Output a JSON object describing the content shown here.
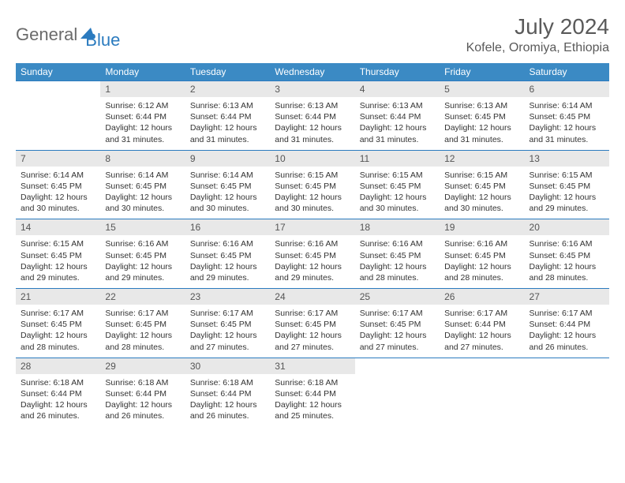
{
  "brand": {
    "part1": "General",
    "part2": "Blue"
  },
  "title": "July 2024",
  "location": "Kofele, Oromiya, Ethiopia",
  "colors": {
    "header_bg": "#3b8ac4",
    "row_border": "#2b7bbf",
    "daynum_bg": "#e8e8e8",
    "text": "#333333",
    "title_text": "#5a5a5a",
    "brand_gray": "#6a6a6a",
    "brand_blue": "#2b7bbf",
    "page_bg": "#ffffff"
  },
  "typography": {
    "month_title_pt": 28,
    "location_pt": 16,
    "weekday_header_pt": 12,
    "daynum_pt": 12,
    "cell_body_pt": 10.5,
    "logo_pt": 22
  },
  "weekdays": [
    "Sunday",
    "Monday",
    "Tuesday",
    "Wednesday",
    "Thursday",
    "Friday",
    "Saturday"
  ],
  "weeks": [
    [
      null,
      {
        "n": "1",
        "sunrise": "Sunrise: 6:12 AM",
        "sunset": "Sunset: 6:44 PM",
        "daylight": "Daylight: 12 hours and 31 minutes."
      },
      {
        "n": "2",
        "sunrise": "Sunrise: 6:13 AM",
        "sunset": "Sunset: 6:44 PM",
        "daylight": "Daylight: 12 hours and 31 minutes."
      },
      {
        "n": "3",
        "sunrise": "Sunrise: 6:13 AM",
        "sunset": "Sunset: 6:44 PM",
        "daylight": "Daylight: 12 hours and 31 minutes."
      },
      {
        "n": "4",
        "sunrise": "Sunrise: 6:13 AM",
        "sunset": "Sunset: 6:44 PM",
        "daylight": "Daylight: 12 hours and 31 minutes."
      },
      {
        "n": "5",
        "sunrise": "Sunrise: 6:13 AM",
        "sunset": "Sunset: 6:45 PM",
        "daylight": "Daylight: 12 hours and 31 minutes."
      },
      {
        "n": "6",
        "sunrise": "Sunrise: 6:14 AM",
        "sunset": "Sunset: 6:45 PM",
        "daylight": "Daylight: 12 hours and 31 minutes."
      }
    ],
    [
      {
        "n": "7",
        "sunrise": "Sunrise: 6:14 AM",
        "sunset": "Sunset: 6:45 PM",
        "daylight": "Daylight: 12 hours and 30 minutes."
      },
      {
        "n": "8",
        "sunrise": "Sunrise: 6:14 AM",
        "sunset": "Sunset: 6:45 PM",
        "daylight": "Daylight: 12 hours and 30 minutes."
      },
      {
        "n": "9",
        "sunrise": "Sunrise: 6:14 AM",
        "sunset": "Sunset: 6:45 PM",
        "daylight": "Daylight: 12 hours and 30 minutes."
      },
      {
        "n": "10",
        "sunrise": "Sunrise: 6:15 AM",
        "sunset": "Sunset: 6:45 PM",
        "daylight": "Daylight: 12 hours and 30 minutes."
      },
      {
        "n": "11",
        "sunrise": "Sunrise: 6:15 AM",
        "sunset": "Sunset: 6:45 PM",
        "daylight": "Daylight: 12 hours and 30 minutes."
      },
      {
        "n": "12",
        "sunrise": "Sunrise: 6:15 AM",
        "sunset": "Sunset: 6:45 PM",
        "daylight": "Daylight: 12 hours and 30 minutes."
      },
      {
        "n": "13",
        "sunrise": "Sunrise: 6:15 AM",
        "sunset": "Sunset: 6:45 PM",
        "daylight": "Daylight: 12 hours and 29 minutes."
      }
    ],
    [
      {
        "n": "14",
        "sunrise": "Sunrise: 6:15 AM",
        "sunset": "Sunset: 6:45 PM",
        "daylight": "Daylight: 12 hours and 29 minutes."
      },
      {
        "n": "15",
        "sunrise": "Sunrise: 6:16 AM",
        "sunset": "Sunset: 6:45 PM",
        "daylight": "Daylight: 12 hours and 29 minutes."
      },
      {
        "n": "16",
        "sunrise": "Sunrise: 6:16 AM",
        "sunset": "Sunset: 6:45 PM",
        "daylight": "Daylight: 12 hours and 29 minutes."
      },
      {
        "n": "17",
        "sunrise": "Sunrise: 6:16 AM",
        "sunset": "Sunset: 6:45 PM",
        "daylight": "Daylight: 12 hours and 29 minutes."
      },
      {
        "n": "18",
        "sunrise": "Sunrise: 6:16 AM",
        "sunset": "Sunset: 6:45 PM",
        "daylight": "Daylight: 12 hours and 28 minutes."
      },
      {
        "n": "19",
        "sunrise": "Sunrise: 6:16 AM",
        "sunset": "Sunset: 6:45 PM",
        "daylight": "Daylight: 12 hours and 28 minutes."
      },
      {
        "n": "20",
        "sunrise": "Sunrise: 6:16 AM",
        "sunset": "Sunset: 6:45 PM",
        "daylight": "Daylight: 12 hours and 28 minutes."
      }
    ],
    [
      {
        "n": "21",
        "sunrise": "Sunrise: 6:17 AM",
        "sunset": "Sunset: 6:45 PM",
        "daylight": "Daylight: 12 hours and 28 minutes."
      },
      {
        "n": "22",
        "sunrise": "Sunrise: 6:17 AM",
        "sunset": "Sunset: 6:45 PM",
        "daylight": "Daylight: 12 hours and 28 minutes."
      },
      {
        "n": "23",
        "sunrise": "Sunrise: 6:17 AM",
        "sunset": "Sunset: 6:45 PM",
        "daylight": "Daylight: 12 hours and 27 minutes."
      },
      {
        "n": "24",
        "sunrise": "Sunrise: 6:17 AM",
        "sunset": "Sunset: 6:45 PM",
        "daylight": "Daylight: 12 hours and 27 minutes."
      },
      {
        "n": "25",
        "sunrise": "Sunrise: 6:17 AM",
        "sunset": "Sunset: 6:45 PM",
        "daylight": "Daylight: 12 hours and 27 minutes."
      },
      {
        "n": "26",
        "sunrise": "Sunrise: 6:17 AM",
        "sunset": "Sunset: 6:44 PM",
        "daylight": "Daylight: 12 hours and 27 minutes."
      },
      {
        "n": "27",
        "sunrise": "Sunrise: 6:17 AM",
        "sunset": "Sunset: 6:44 PM",
        "daylight": "Daylight: 12 hours and 26 minutes."
      }
    ],
    [
      {
        "n": "28",
        "sunrise": "Sunrise: 6:18 AM",
        "sunset": "Sunset: 6:44 PM",
        "daylight": "Daylight: 12 hours and 26 minutes."
      },
      {
        "n": "29",
        "sunrise": "Sunrise: 6:18 AM",
        "sunset": "Sunset: 6:44 PM",
        "daylight": "Daylight: 12 hours and 26 minutes."
      },
      {
        "n": "30",
        "sunrise": "Sunrise: 6:18 AM",
        "sunset": "Sunset: 6:44 PM",
        "daylight": "Daylight: 12 hours and 26 minutes."
      },
      {
        "n": "31",
        "sunrise": "Sunrise: 6:18 AM",
        "sunset": "Sunset: 6:44 PM",
        "daylight": "Daylight: 12 hours and 25 minutes."
      },
      null,
      null,
      null
    ]
  ]
}
